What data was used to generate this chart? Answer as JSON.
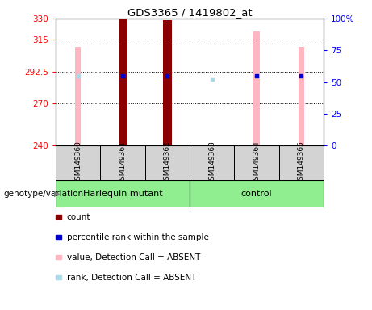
{
  "title": "GDS3365 / 1419802_at",
  "samples": [
    "GSM149360",
    "GSM149361",
    "GSM149362",
    "GSM149363",
    "GSM149364",
    "GSM149365"
  ],
  "ylim_left": [
    240,
    330
  ],
  "ylim_right": [
    0,
    100
  ],
  "yticks_left": [
    240,
    270,
    292.5,
    315,
    330
  ],
  "yticks_right": [
    0,
    25,
    50,
    75,
    100
  ],
  "pink_bar_tops": [
    310,
    330,
    329,
    240,
    321,
    310
  ],
  "dark_red_tops": [
    240,
    330,
    329,
    240,
    240,
    240
  ],
  "blue_square_rank": [
    null,
    55,
    55,
    null,
    55,
    55
  ],
  "light_blue_rank": [
    55,
    null,
    null,
    52,
    null,
    null
  ],
  "colors": {
    "dark_red": "#8B0000",
    "pink": "#FFB6C1",
    "blue": "#0000CD",
    "light_blue": "#ADD8E6",
    "green": "#90EE90",
    "gray": "#D3D3D3",
    "white": "#FFFFFF",
    "black": "#000000"
  },
  "pink_bar_width": 0.13,
  "dark_red_bar_width": 0.2,
  "genotype_label": "genotype/variation",
  "harlequin_label": "Harlequin mutant",
  "control_label": "control",
  "legend_items": [
    {
      "color": "#8B0000",
      "label": "count"
    },
    {
      "color": "#0000CD",
      "label": "percentile rank within the sample"
    },
    {
      "color": "#FFB6C1",
      "label": "value, Detection Call = ABSENT"
    },
    {
      "color": "#ADD8E6",
      "label": "rank, Detection Call = ABSENT"
    }
  ]
}
